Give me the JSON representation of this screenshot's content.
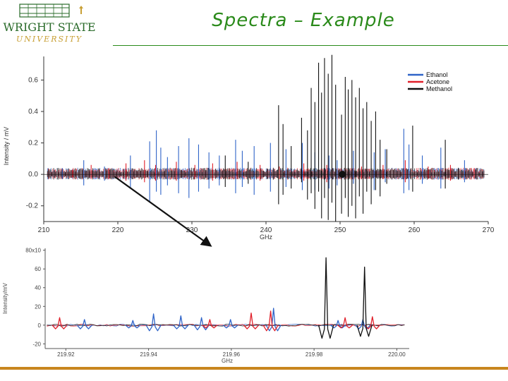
{
  "slide": {
    "title": "Spectra – Example",
    "logo_line1": "WRIGHT STATE",
    "logo_line2": "UNIVERSITY"
  },
  "colors": {
    "ethanol": "#2f64c8",
    "acetone": "#e0202a",
    "methanol": "#111111",
    "title_green": "#2a8a1a",
    "logo_green": "#2a6b2a",
    "logo_gold": "#c8a035",
    "rule_orange": "#c8861e"
  },
  "chart_data": [
    {
      "type": "line",
      "xlabel": "GHz",
      "ylabel": "Intensity / mV",
      "xlim": [
        210,
        270
      ],
      "ylim": [
        -0.3,
        0.75
      ],
      "x_ticks": [
        210,
        220,
        230,
        240,
        250,
        260,
        270
      ],
      "y_ticks": [
        -0.2,
        0.0,
        0.2,
        0.4,
        0.6
      ],
      "y_tick_labels": [
        "-0.2",
        "0.0",
        "0.2",
        "0.4",
        "0.6"
      ],
      "legend": {
        "position": "top-right",
        "entries": [
          "Ethanol",
          "Acetone",
          "Methanol"
        ]
      },
      "series": [
        {
          "name": "Ethanol",
          "color": "#2f64c8",
          "lines": [
            [
              212.5,
              0.04,
              -0.03
            ],
            [
              215.4,
              0.09,
              -0.07
            ],
            [
              218.2,
              0.05,
              -0.04
            ],
            [
              221.7,
              0.12,
              -0.09
            ],
            [
              224.3,
              0.21,
              -0.18
            ],
            [
              225.2,
              0.28,
              -0.11
            ],
            [
              225.8,
              0.17,
              -0.13
            ],
            [
              226.7,
              0.11,
              -0.07
            ],
            [
              228.2,
              0.18,
              -0.12
            ],
            [
              229.6,
              0.23,
              -0.15
            ],
            [
              230.9,
              0.19,
              -0.11
            ],
            [
              232.3,
              0.14,
              -0.09
            ],
            [
              233.7,
              0.12,
              -0.07
            ],
            [
              235.9,
              0.22,
              -0.12
            ],
            [
              236.8,
              0.15,
              -0.08
            ],
            [
              238.4,
              0.18,
              -0.13
            ],
            [
              240.6,
              0.2,
              -0.11
            ],
            [
              242.7,
              0.16,
              -0.08
            ],
            [
              244.9,
              0.2,
              -0.1
            ],
            [
              246.6,
              0.14,
              -0.1
            ],
            [
              248.5,
              0.12,
              -0.09
            ],
            [
              249.6,
              0.09,
              -0.07
            ],
            [
              251.8,
              0.15,
              -0.06
            ],
            [
              254.6,
              0.14,
              -0.1
            ],
            [
              256.1,
              0.16,
              -0.05
            ],
            [
              258.6,
              0.29,
              -0.12
            ],
            [
              259.3,
              0.19,
              -0.1
            ],
            [
              261.1,
              0.12,
              -0.06
            ],
            [
              263.6,
              0.17,
              -0.09
            ],
            [
              266.8,
              0.09,
              -0.05
            ]
          ]
        },
        {
          "name": "Acetone",
          "color": "#e0202a",
          "lines": [
            [
              213.9,
              0.03,
              -0.02
            ],
            [
              216.4,
              0.06,
              -0.03
            ],
            [
              218.8,
              0.04,
              -0.03
            ],
            [
              221.1,
              0.07,
              -0.04
            ],
            [
              223.6,
              0.09,
              -0.05
            ],
            [
              225.1,
              0.06,
              -0.04
            ],
            [
              227.9,
              0.08,
              -0.04
            ],
            [
              230.4,
              0.06,
              -0.03
            ],
            [
              232.8,
              0.07,
              -0.04
            ],
            [
              236.1,
              0.08,
              -0.03
            ],
            [
              239.2,
              0.06,
              -0.04
            ],
            [
              241.8,
              0.05,
              -0.03
            ],
            [
              245.1,
              0.07,
              -0.04
            ],
            [
              248.2,
              0.06,
              -0.05
            ],
            [
              252.9,
              0.05,
              -0.03
            ],
            [
              255.8,
              0.06,
              -0.03
            ],
            [
              258.8,
              0.09,
              -0.05
            ],
            [
              261.9,
              0.05,
              -0.03
            ],
            [
              264.9,
              0.06,
              -0.04
            ],
            [
              268.1,
              0.04,
              -0.02
            ]
          ]
        },
        {
          "name": "Methanol",
          "color": "#111111",
          "lines": [
            [
              234.5,
              0.12,
              -0.08
            ],
            [
              237.6,
              0.08,
              -0.06
            ],
            [
              241.7,
              0.44,
              -0.19
            ],
            [
              242.3,
              0.32,
              -0.13
            ],
            [
              243.4,
              0.18,
              -0.09
            ],
            [
              244.8,
              0.36,
              -0.05
            ],
            [
              245.6,
              0.28,
              -0.16
            ],
            [
              246.1,
              0.55,
              -0.12
            ],
            [
              246.6,
              0.46,
              -0.22
            ],
            [
              247.1,
              0.71,
              -0.11
            ],
            [
              247.5,
              0.52,
              -0.28
            ],
            [
              247.9,
              0.74,
              -0.15
            ],
            [
              248.4,
              0.64,
              -0.29
            ],
            [
              248.9,
              0.76,
              -0.18
            ],
            [
              249.4,
              0.57,
              -0.3
            ],
            [
              250.2,
              0.38,
              -0.25
            ],
            [
              250.7,
              0.62,
              -0.15
            ],
            [
              251.1,
              0.54,
              -0.27
            ],
            [
              251.6,
              0.6,
              -0.2
            ],
            [
              252.1,
              0.49,
              -0.28
            ],
            [
              252.6,
              0.55,
              -0.14
            ],
            [
              253.1,
              0.42,
              -0.25
            ],
            [
              253.6,
              0.46,
              -0.11
            ],
            [
              254.2,
              0.34,
              -0.19
            ],
            [
              254.8,
              0.4,
              -0.1
            ],
            [
              255.4,
              0.22,
              -0.14
            ],
            [
              256.3,
              0.16,
              -0.06
            ],
            [
              259.8,
              0.31,
              -0.11
            ],
            [
              264.2,
              0.22,
              -0.09
            ]
          ]
        }
      ]
    },
    {
      "type": "line",
      "xlabel": "GHz",
      "ylabel": "Intensity/mV",
      "xlim": [
        219.915,
        220.003
      ],
      "ylim": [
        -25,
        82
      ],
      "x_ticks": [
        219.92,
        219.94,
        219.96,
        219.98,
        220.0
      ],
      "x_tick_labels": [
        "219.92",
        "219.94",
        "219.96",
        "219.98",
        "220.00"
      ],
      "y_ticks": [
        -20,
        0,
        20,
        40,
        60,
        80
      ],
      "y_tick_labels": [
        "-20",
        "0",
        "20",
        "40",
        "60",
        "80x10"
      ],
      "series": [
        {
          "name": "Ethanol",
          "color": "#2f64c8",
          "peaks": [
            [
              219.9245,
              -4,
              6
            ],
            [
              219.9362,
              -3,
              5
            ],
            [
              219.9412,
              -6,
              12
            ],
            [
              219.9478,
              -4,
              10
            ],
            [
              219.9528,
              -5,
              8
            ],
            [
              219.9598,
              -3,
              6
            ],
            [
              219.9702,
              -6,
              18
            ],
            [
              219.9858,
              -3,
              5
            ],
            [
              219.9918,
              -4,
              6
            ]
          ]
        },
        {
          "name": "Acetone",
          "color": "#e0202a",
          "peaks": [
            [
              219.9185,
              -4,
              8
            ],
            [
              219.9548,
              -3,
              6
            ],
            [
              219.9648,
              -4,
              13
            ],
            [
              219.9695,
              -6,
              15
            ],
            [
              219.9875,
              -3,
              8
            ],
            [
              219.9941,
              -4,
              9
            ]
          ]
        },
        {
          "name": "Methanol",
          "color": "#111111",
          "peaks": [
            [
              219.9829,
              -14,
              72
            ],
            [
              219.9922,
              -12,
              62
            ]
          ]
        }
      ]
    }
  ]
}
